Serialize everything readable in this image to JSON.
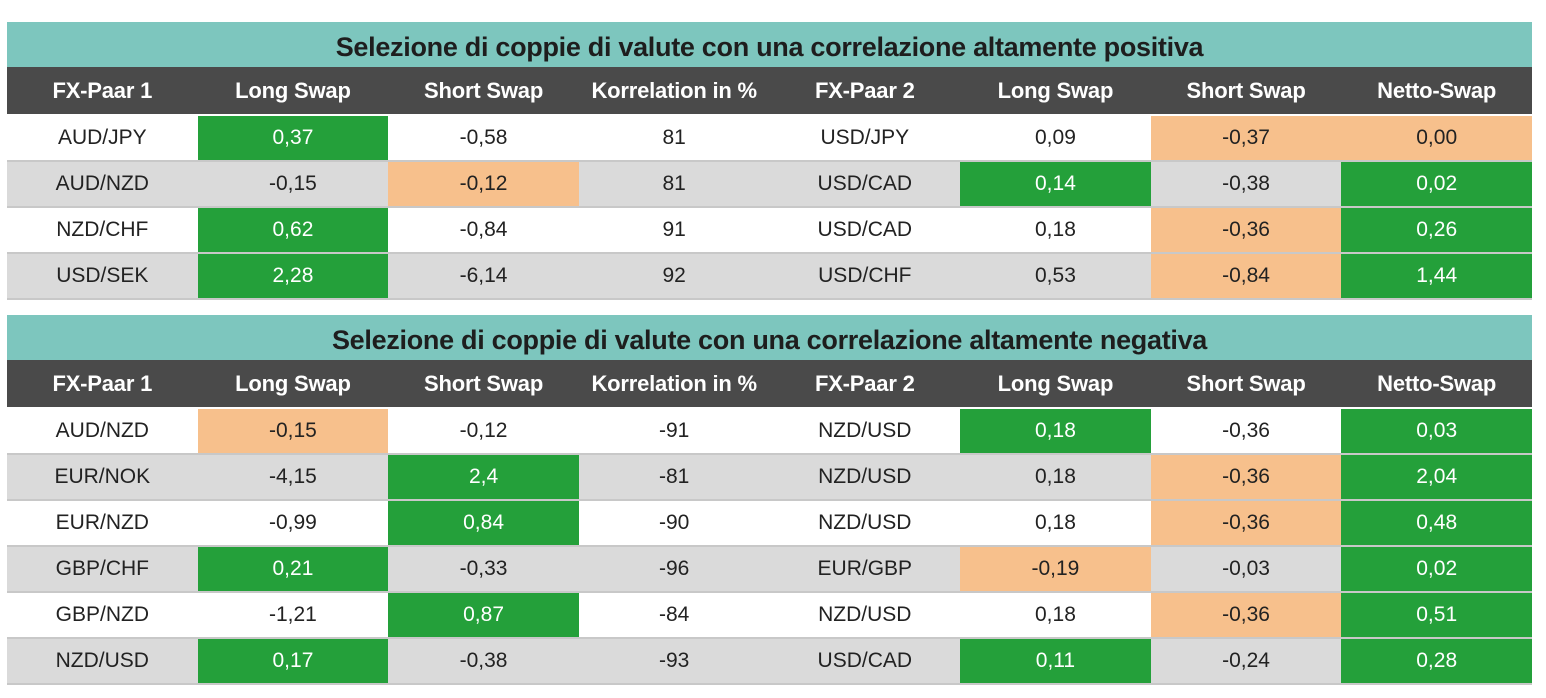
{
  "colors": {
    "title_bg": "#7dc6be",
    "header_bg": "#4a4a4a",
    "positive_highlight": "#24a03a",
    "negative_highlight": "#f7c08c",
    "row_alt": "#dadada"
  },
  "columns": [
    "FX-Paar 1",
    "Long Swap",
    "Short Swap",
    "Korrelation in %",
    "FX-Paar 2",
    "Long Swap",
    "Short Swap",
    "Netto-Swap"
  ],
  "tables": [
    {
      "title": "Selezione di coppie di valute con una correlazione altamente positiva",
      "rows": [
        {
          "cells": [
            "AUD/JPY",
            "0,37",
            "-0,58",
            "81",
            "USD/JPY",
            "0,09",
            "-0,37",
            "0,00"
          ],
          "hl": [
            "",
            "green",
            "",
            "",
            "",
            "",
            "orange",
            "orange"
          ]
        },
        {
          "cells": [
            "AUD/NZD",
            "-0,15",
            "-0,12",
            "81",
            "USD/CAD",
            "0,14",
            "-0,38",
            "0,02"
          ],
          "hl": [
            "",
            "",
            "orange",
            "",
            "",
            "green",
            "",
            "green"
          ]
        },
        {
          "cells": [
            "NZD/CHF",
            "0,62",
            "-0,84",
            "91",
            "USD/CAD",
            "0,18",
            "-0,36",
            "0,26"
          ],
          "hl": [
            "",
            "green",
            "",
            "",
            "",
            "",
            "orange",
            "green"
          ]
        },
        {
          "cells": [
            "USD/SEK",
            "2,28",
            "-6,14",
            "92",
            "USD/CHF",
            "0,53",
            "-0,84",
            "1,44"
          ],
          "hl": [
            "",
            "green",
            "",
            "",
            "",
            "",
            "orange",
            "green"
          ]
        }
      ]
    },
    {
      "title": "Selezione di coppie di valute con una correlazione altamente negativa",
      "rows": [
        {
          "cells": [
            "AUD/NZD",
            "-0,15",
            "-0,12",
            "-91",
            "NZD/USD",
            "0,18",
            "-0,36",
            "0,03"
          ],
          "hl": [
            "",
            "orange",
            "",
            "",
            "",
            "green",
            "",
            "green"
          ]
        },
        {
          "cells": [
            "EUR/NOK",
            "-4,15",
            "2,4",
            "-81",
            "NZD/USD",
            "0,18",
            "-0,36",
            "2,04"
          ],
          "hl": [
            "",
            "",
            "green",
            "",
            "",
            "",
            "orange",
            "green"
          ]
        },
        {
          "cells": [
            "EUR/NZD",
            "-0,99",
            "0,84",
            "-90",
            "NZD/USD",
            "0,18",
            "-0,36",
            "0,48"
          ],
          "hl": [
            "",
            "",
            "green",
            "",
            "",
            "",
            "orange",
            "green"
          ]
        },
        {
          "cells": [
            "GBP/CHF",
            "0,21",
            "-0,33",
            "-96",
            "EUR/GBP",
            "-0,19",
            "-0,03",
            "0,02"
          ],
          "hl": [
            "",
            "green",
            "",
            "",
            "",
            "orange",
            "",
            "green"
          ]
        },
        {
          "cells": [
            "GBP/NZD",
            "-1,21",
            "0,87",
            "-84",
            "NZD/USD",
            "0,18",
            "-0,36",
            "0,51"
          ],
          "hl": [
            "",
            "",
            "green",
            "",
            "",
            "",
            "orange",
            "green"
          ]
        },
        {
          "cells": [
            "NZD/USD",
            "0,17",
            "-0,38",
            "-93",
            "USD/CAD",
            "0,11",
            "-0,24",
            "0,28"
          ],
          "hl": [
            "",
            "green",
            "",
            "",
            "",
            "green",
            "",
            "green"
          ]
        }
      ]
    }
  ]
}
